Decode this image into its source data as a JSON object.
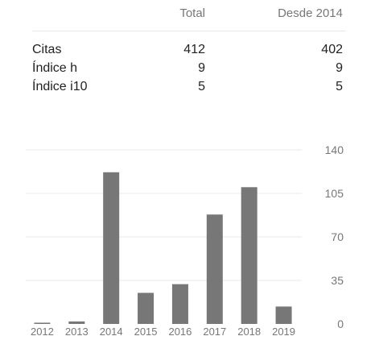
{
  "metrics": {
    "header": {
      "col_total": "Total",
      "col_since": "Desde 2014"
    },
    "rows": [
      {
        "label": "Citas",
        "total": "412",
        "since": "402"
      },
      {
        "label": "Índice h",
        "total": "9",
        "since": "9"
      },
      {
        "label": "Índice i10",
        "total": "5",
        "since": "5"
      }
    ]
  },
  "chart_data": {
    "type": "bar",
    "categories": [
      "2012",
      "2013",
      "2014",
      "2015",
      "2016",
      "2017",
      "2018",
      "2019"
    ],
    "values": [
      1,
      2,
      122,
      25,
      32,
      88,
      110,
      14
    ],
    "yticks": [
      "0",
      "35",
      "70",
      "105",
      "140"
    ],
    "ylim": [
      0,
      140
    ],
    "grid": true,
    "bar_color": "#777777",
    "grid_color": "#e8e8e8"
  }
}
